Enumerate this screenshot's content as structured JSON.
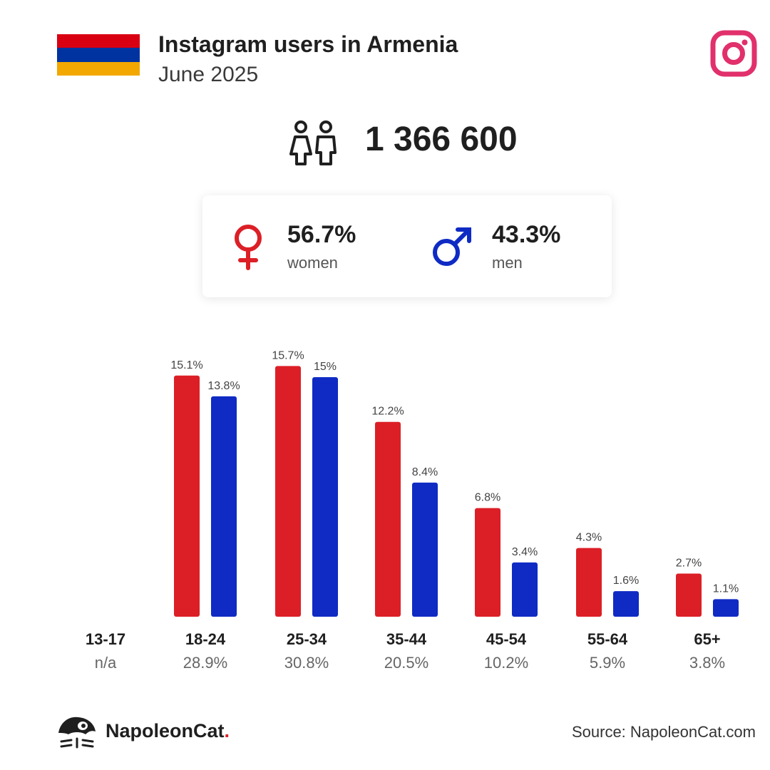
{
  "header": {
    "title": "Instagram users in Armenia",
    "subtitle": "June 2025"
  },
  "flag_colors": [
    "#d90012",
    "#0033a0",
    "#f2a800"
  ],
  "brand_colors": {
    "women": "#dc1f26",
    "men": "#0f2bc4",
    "instagram": "#e1306c"
  },
  "summary": {
    "total_users": "1 366 600",
    "women_pct": "56.7%",
    "women_label": "women",
    "men_pct": "43.3%",
    "men_label": "men"
  },
  "chart_data": {
    "type": "bar",
    "categories": [
      "13-17",
      "18-24",
      "25-34",
      "35-44",
      "45-54",
      "55-64",
      "65+"
    ],
    "category_totals": [
      "n/a",
      "28.9%",
      "30.8%",
      "20.5%",
      "10.2%",
      "5.9%",
      "3.8%"
    ],
    "series": [
      {
        "name": "women",
        "values": [
          null,
          15.1,
          15.7,
          12.2,
          6.8,
          4.3,
          2.7
        ],
        "labels": [
          "",
          "15.1%",
          "15.7%",
          "12.2%",
          "6.8%",
          "4.3%",
          "2.7%"
        ]
      },
      {
        "name": "men",
        "values": [
          null,
          13.8,
          15.0,
          8.4,
          3.4,
          1.6,
          1.1
        ],
        "labels": [
          "",
          "13.8%",
          "15%",
          "8.4%",
          "3.4%",
          "1.6%",
          "1.1%"
        ]
      }
    ],
    "ylim": [
      0,
      16
    ],
    "grid": false
  },
  "footer": {
    "brand": "NapoleonCat",
    "brand_dot": ".",
    "source": "Source: NapoleonCat.com"
  }
}
